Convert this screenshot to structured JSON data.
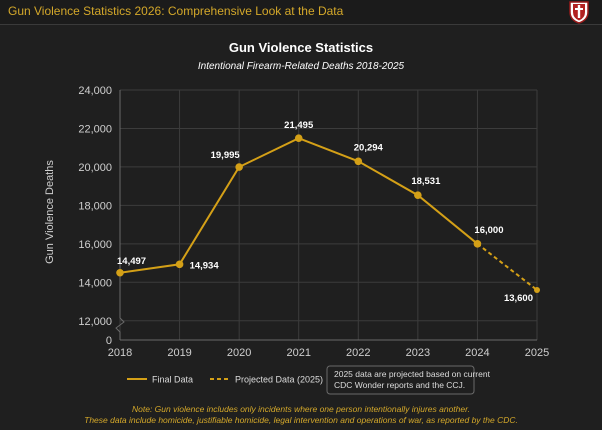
{
  "page": {
    "title": "Gun Violence Statistics 2026: Comprehensive Look at the Data"
  },
  "colors": {
    "accent": "#d4a82a",
    "line": "#d4a017",
    "background": "#1f1f1f",
    "grid": "#3c3c3c"
  },
  "chart_data": {
    "type": "line",
    "title": "Gun Violence Statistics",
    "subtitle": "Intentional Firearm-Related Deaths 2018-2025",
    "ylabel": "Gun Violence Deaths",
    "xlabel": "",
    "x": [
      2018,
      2019,
      2020,
      2021,
      2022,
      2023,
      2024,
      2025
    ],
    "x_tick_labels": [
      "2018",
      "2019",
      "2020",
      "2021",
      "2022",
      "2023",
      "2024",
      "2025"
    ],
    "y_tick_labels": [
      "0",
      "12,000",
      "14,000",
      "16,000",
      "18,000",
      "20,000",
      "22,000",
      "24,000"
    ],
    "y_ticks": [
      0,
      12000,
      14000,
      16000,
      18000,
      20000,
      22000,
      24000
    ],
    "ylim": [
      11000,
      24000
    ],
    "axis_break": true,
    "grid": true,
    "series": [
      {
        "name": "Final Data",
        "style": "solid",
        "x": [
          2018,
          2019,
          2020,
          2021,
          2022,
          2023,
          2024
        ],
        "values": [
          14497,
          14934,
          19995,
          21495,
          20294,
          18531,
          16000
        ],
        "labels": [
          "14,497",
          "14,934",
          "19,995",
          "21,495",
          "20,294",
          "18,531",
          "16,000"
        ]
      },
      {
        "name": "Projected Data (2025)",
        "style": "dashed",
        "x": [
          2024,
          2025
        ],
        "values": [
          16000,
          13600
        ],
        "labels": [
          "",
          "13,600"
        ]
      }
    ],
    "legend": {
      "placement": "bottom",
      "entries": [
        "Final Data",
        "Projected Data (2025)"
      ]
    },
    "note_box": {
      "line1": "2025 data are projected based on current",
      "line2": "CDC Wonder reports and the CCJ."
    }
  },
  "footnote": {
    "line1": "Note: Gun violence includes only incidents where one person intentionally injures another.",
    "line2": "These data include homicide, justifiable homicide, legal intervention and operations of war, as reported by the CDC."
  }
}
